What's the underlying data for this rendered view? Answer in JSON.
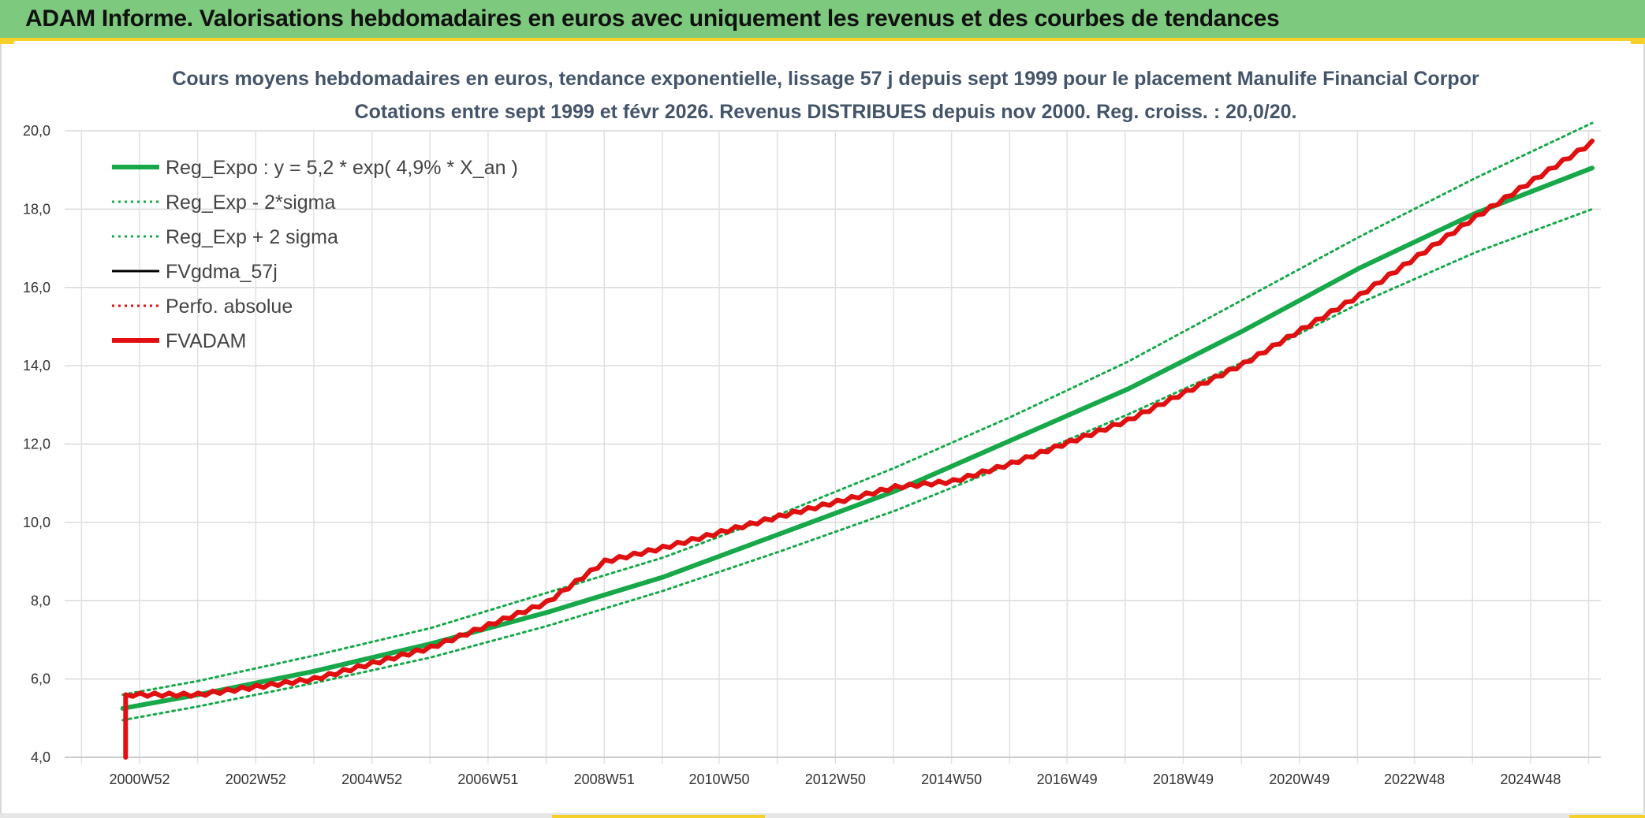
{
  "banner": {
    "title": "ADAM Informe. Valorisations hebdomadaires en euros avec uniquement les revenus et des courbes de tendances"
  },
  "colors": {
    "banner_bg": "#7dc97d",
    "accent_yellow": "#f5cf2a",
    "trend_green": "#17a84a",
    "adam_red": "#e01010",
    "gdma_black": "#000000"
  },
  "chart_data": {
    "type": "line",
    "title": "Cours moyens hebdomadaires en euros, tendance exponentielle, lissage 57 j depuis sept 1999 pour le placement Manulife Financial Corpor",
    "subtitle": "Cotations entre sept 1999 et févr 2026. Revenus DISTRIBUES depuis nov 2000. Reg. croiss. : 20,0/20.",
    "xlabel": "",
    "ylabel": "",
    "ylim": [
      4.0,
      20.0
    ],
    "xlim": [
      1999.7,
      2026.15
    ],
    "grid": true,
    "legend_position": "top-left",
    "y_ticks": [
      "4,0",
      "6,0",
      "8,0",
      "10,0",
      "12,0",
      "14,0",
      "16,0",
      "18,0",
      "20,0"
    ],
    "x_tick_labels": [
      "2000W52",
      "2002W52",
      "2004W52",
      "2006W51",
      "2008W51",
      "2010W50",
      "2012W50",
      "2014W50",
      "2016W49",
      "2018W49",
      "2020W49",
      "2022W48",
      "2024W48"
    ],
    "x_tick_years": [
      2000.99,
      2002.99,
      2004.99,
      2006.99,
      2008.99,
      2010.97,
      2012.97,
      2014.97,
      2016.96,
      2018.96,
      2020.96,
      2022.94,
      2024.94
    ],
    "series": [
      {
        "name": "Reg_Expo : y = 5,2 * exp( 4,9% *  X_an )",
        "style": "solid-thick",
        "color": "#17a84a",
        "x": [
          2000.7,
          2002,
          2004,
          2006,
          2008,
          2010,
          2012,
          2014,
          2016,
          2018,
          2020,
          2022,
          2024,
          2026
        ],
        "y": [
          5.25,
          5.6,
          6.2,
          6.9,
          7.7,
          8.6,
          9.7,
          10.8,
          12.1,
          13.4,
          14.9,
          16.5,
          17.9,
          19.05
        ]
      },
      {
        "name": "Reg_Exp - 2*sigma",
        "style": "dotted",
        "color": "#17a84a",
        "x": [
          2000.7,
          2002,
          2004,
          2006,
          2008,
          2010,
          2012,
          2014,
          2016,
          2018,
          2020,
          2022,
          2024,
          2026
        ],
        "y": [
          4.95,
          5.3,
          5.9,
          6.55,
          7.35,
          8.25,
          9.25,
          10.3,
          11.5,
          12.75,
          14.1,
          15.6,
          16.9,
          18.0
        ]
      },
      {
        "name": "Reg_Exp + 2 sigma",
        "style": "dotted",
        "color": "#17a84a",
        "x": [
          2000.7,
          2002,
          2004,
          2006,
          2008,
          2010,
          2012,
          2014,
          2016,
          2018,
          2020,
          2022,
          2024,
          2026
        ],
        "y": [
          5.6,
          5.95,
          6.6,
          7.3,
          8.2,
          9.1,
          10.2,
          11.4,
          12.7,
          14.1,
          15.7,
          17.3,
          18.8,
          20.2
        ]
      },
      {
        "name": "FVgdma_57j",
        "style": "solid",
        "color": "#000000",
        "x": [
          2000.75,
          2002,
          2004,
          2006,
          2008,
          2009,
          2010,
          2012,
          2014,
          2015,
          2016,
          2018,
          2020,
          2022,
          2024,
          2026
        ],
        "y": [
          5.6,
          5.6,
          6.0,
          6.8,
          7.95,
          9.0,
          9.35,
          10.15,
          10.9,
          11.05,
          11.5,
          12.6,
          14.05,
          15.8,
          17.8,
          19.7
        ]
      },
      {
        "name": "Perfo. absolue",
        "style": "dotted",
        "color": "#e01010",
        "x": [],
        "y": []
      },
      {
        "name": "FVADAM",
        "style": "solid-thick",
        "color": "#e01010",
        "x": [
          2000.75,
          2000.75,
          2002,
          2004,
          2006,
          2008,
          2009,
          2010,
          2012,
          2014,
          2015,
          2016,
          2018,
          2020,
          2022,
          2024,
          2026
        ],
        "y": [
          4.0,
          5.6,
          5.6,
          6.0,
          6.8,
          7.95,
          9.0,
          9.35,
          10.15,
          10.9,
          11.05,
          11.5,
          12.6,
          14.05,
          15.8,
          17.8,
          19.7
        ]
      }
    ]
  }
}
